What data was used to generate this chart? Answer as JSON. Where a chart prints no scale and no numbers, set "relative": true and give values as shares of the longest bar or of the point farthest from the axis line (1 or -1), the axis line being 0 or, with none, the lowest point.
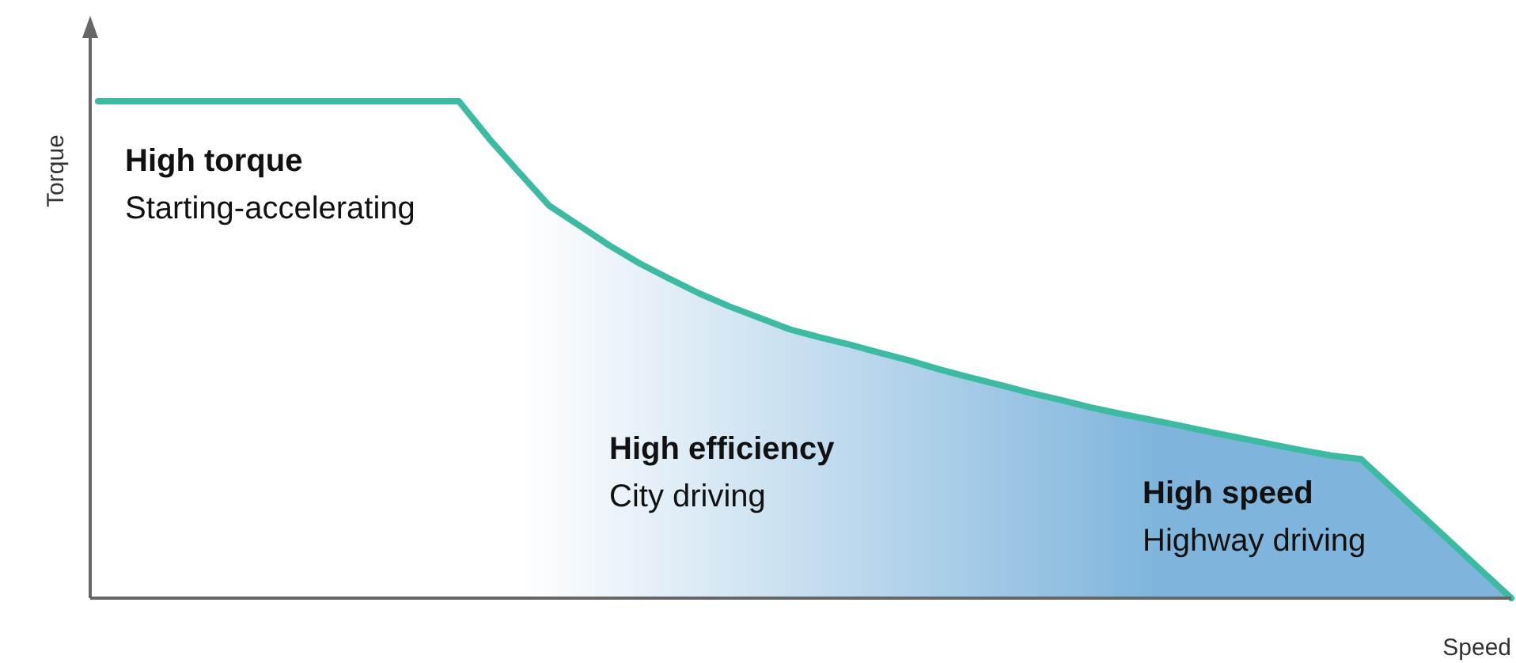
{
  "chart_data": {
    "type": "area",
    "relative": true,
    "xlabel": "Speed",
    "ylabel": "Torque",
    "categories": [
      null,
      null,
      null,
      null,
      null,
      null,
      null,
      null,
      null,
      null,
      null,
      null,
      null,
      null,
      null,
      null,
      null,
      null,
      null,
      null,
      null,
      null,
      null,
      null,
      null,
      null,
      null,
      null,
      null,
      null,
      null,
      null,
      null,
      null,
      null,
      null,
      null,
      null,
      null,
      null,
      null,
      null,
      null,
      null,
      null,
      null,
      null,
      null
    ],
    "series": [
      {
        "color": "#3dbaa2",
        "values": [
          1,
          1,
          1,
          1,
          1,
          1,
          1,
          1,
          1,
          1,
          1,
          1,
          1,
          0.925,
          0.857,
          0.79,
          0.75,
          0.71,
          0.674,
          0.643,
          0.613,
          0.587,
          0.564,
          0.541,
          0.525,
          0.51,
          0.494,
          0.478,
          0.46,
          0.444,
          0.429,
          0.413,
          0.399,
          0.384,
          0.371,
          0.359,
          0.347,
          0.334,
          0.322,
          0.31,
          0.298,
          0.287,
          0.28,
          0.224,
          0.168,
          0.112,
          0.056,
          0
        ]
      }
    ],
    "annotations": [
      "High torque",
      "Starting-accelerating",
      "High efficiency",
      "City driving",
      "High speed",
      "Highway driving"
    ]
  }
}
